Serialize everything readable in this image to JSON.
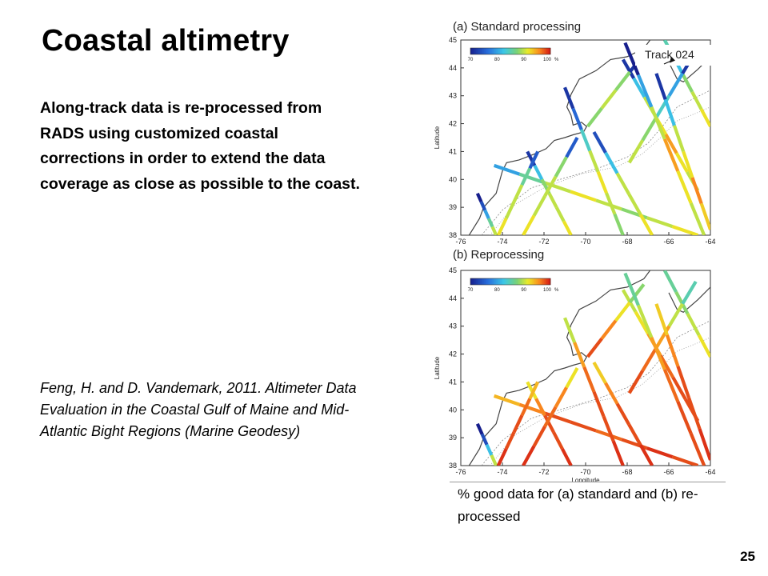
{
  "slide": {
    "title": "Coastal altimetry",
    "body": "Along-track data is re-processed from RADS using customized coastal corrections in order to extend the data coverage as close as possible to the coast.",
    "citation": "Feng, H. and D. Vandemark, 2011. Altimeter Data Evaluation in the Coastal Gulf of Maine and Mid-Atlantic Bight Regions (Marine Geodesy)",
    "caption": "% good data for (a) standard and (b) re-processed",
    "page_number": "25"
  },
  "chart_data": [
    {
      "type": "map",
      "title": "(a) Standard processing",
      "annotation": "Track 024",
      "xlabel": "",
      "ylabel": "Latitude",
      "xlim": [
        -76,
        -64
      ],
      "ylim": [
        38,
        45
      ],
      "xticks": [
        "-76",
        "-74",
        "-72",
        "-70",
        "-68",
        "-66",
        "-64"
      ],
      "yticks": [
        "38",
        "39",
        "40",
        "41",
        "42",
        "43",
        "44",
        "45"
      ],
      "colorbar": {
        "min": 70,
        "max": 100,
        "ticks": [
          "70",
          "80",
          "90",
          "100"
        ],
        "unit": "%"
      },
      "tracks": [
        {
          "from": [
            -75.2,
            39.5
          ],
          "to": [
            -74.3,
            38.0
          ],
          "values": [
            70,
            74,
            80,
            86,
            90
          ]
        },
        {
          "from": [
            -74.4,
            40.5
          ],
          "to": [
            -64.6,
            38.0
          ],
          "values": [
            80,
            86,
            90,
            92,
            90,
            88,
            90,
            92
          ]
        },
        {
          "from": [
            -72.8,
            41.0
          ],
          "to": [
            -70.7,
            38.0
          ],
          "values": [
            72,
            82,
            88,
            90,
            90,
            92
          ]
        },
        {
          "from": [
            -72.3,
            41.0
          ],
          "to": [
            -74.2,
            38.0
          ],
          "values": [
            75,
            86,
            90,
            90,
            92
          ]
        },
        {
          "from": [
            -71.0,
            43.3
          ],
          "to": [
            -68.2,
            38.0
          ],
          "values": [
            72,
            76,
            84,
            90,
            92,
            90,
            88
          ]
        },
        {
          "from": [
            -70.4,
            41.5
          ],
          "to": [
            -73.0,
            38.0
          ],
          "values": [
            75,
            88,
            90,
            90,
            92
          ]
        },
        {
          "from": [
            -69.6,
            41.7
          ],
          "to": [
            -66.8,
            38.0
          ],
          "values": [
            74,
            82,
            90,
            90,
            92
          ]
        },
        {
          "from": [
            -68.2,
            44.3
          ],
          "to": [
            -64.6,
            39.6
          ],
          "values": [
            72,
            82,
            90,
            92,
            95,
            92,
            90
          ]
        },
        {
          "from": [
            -66.2,
            45.0
          ],
          "to": [
            -64.0,
            41.9
          ],
          "values": [
            85,
            82,
            88,
            90,
            92
          ]
        },
        {
          "from": [
            -64.7,
            44.6
          ],
          "to": [
            -67.9,
            40.6
          ],
          "values": [
            72,
            80,
            84,
            88,
            90
          ]
        },
        {
          "from": [
            -66.6,
            43.8
          ],
          "to": [
            -64.0,
            38.2
          ],
          "values": [
            72,
            82,
            90,
            92,
            96,
            93
          ]
        },
        {
          "from": [
            -67.2,
            44.5
          ],
          "to": [
            -69.9,
            41.9
          ],
          "values": [
            72,
            88,
            90,
            88
          ]
        },
        {
          "from": [
            -64.3,
            38.0
          ],
          "to": [
            -68.1,
            44.9
          ],
          "values": [
            90,
            92,
            95,
            90,
            80,
            70
          ]
        }
      ]
    },
    {
      "type": "map",
      "title": "(b) Reprocessing",
      "xlabel": "Longitude",
      "ylabel": "Latitude",
      "xlim": [
        -76,
        -64
      ],
      "ylim": [
        38,
        45
      ],
      "xticks": [
        "-76",
        "-74",
        "-72",
        "-70",
        "-68",
        "-66",
        "-64"
      ],
      "yticks": [
        "38",
        "39",
        "40",
        "41",
        "42",
        "43",
        "44",
        "45"
      ],
      "colorbar": {
        "min": 70,
        "max": 100,
        "ticks": [
          "70",
          "80",
          "90",
          "100"
        ],
        "unit": "%"
      },
      "tracks": [
        {
          "from": [
            -75.2,
            39.5
          ],
          "to": [
            -74.3,
            38.0
          ],
          "values": [
            70,
            74,
            82,
            90
          ]
        },
        {
          "from": [
            -74.4,
            40.5
          ],
          "to": [
            -64.6,
            38.0
          ],
          "values": [
            94,
            96,
            98,
            98,
            97,
            98,
            99,
            98
          ]
        },
        {
          "from": [
            -72.8,
            41.0
          ],
          "to": [
            -70.7,
            38.0
          ],
          "values": [
            92,
            96,
            98,
            98,
            99
          ]
        },
        {
          "from": [
            -72.3,
            41.0
          ],
          "to": [
            -74.2,
            38.0
          ],
          "values": [
            94,
            97,
            98,
            98,
            99
          ]
        },
        {
          "from": [
            -71.0,
            43.3
          ],
          "to": [
            -68.2,
            38.0
          ],
          "values": [
            90,
            95,
            97,
            98,
            98,
            99
          ]
        },
        {
          "from": [
            -70.4,
            41.5
          ],
          "to": [
            -73.0,
            38.0
          ],
          "values": [
            92,
            96,
            97,
            98,
            99
          ]
        },
        {
          "from": [
            -69.6,
            41.7
          ],
          "to": [
            -66.8,
            38.0
          ],
          "values": [
            93,
            96,
            98,
            98,
            99
          ]
        },
        {
          "from": [
            -68.2,
            44.3
          ],
          "to": [
            -64.6,
            39.6
          ],
          "values": [
            90,
            92,
            95,
            97,
            98,
            98
          ]
        },
        {
          "from": [
            -66.2,
            45.0
          ],
          "to": [
            -64.0,
            41.9
          ],
          "values": [
            86,
            88,
            90,
            92
          ]
        },
        {
          "from": [
            -64.7,
            44.6
          ],
          "to": [
            -67.9,
            40.6
          ],
          "values": [
            85,
            90,
            95,
            97,
            98
          ]
        },
        {
          "from": [
            -66.6,
            43.8
          ],
          "to": [
            -64.0,
            38.2
          ],
          "values": [
            93,
            96,
            98,
            98,
            99
          ]
        },
        {
          "from": [
            -67.2,
            44.5
          ],
          "to": [
            -69.9,
            41.9
          ],
          "values": [
            88,
            92,
            96,
            98
          ]
        },
        {
          "from": [
            -64.3,
            38.0
          ],
          "to": [
            -68.1,
            44.9
          ],
          "values": [
            98,
            98,
            97,
            95,
            90,
            86
          ]
        }
      ]
    }
  ]
}
